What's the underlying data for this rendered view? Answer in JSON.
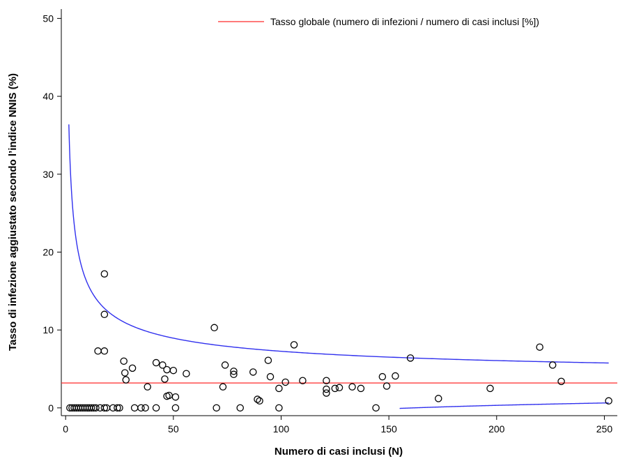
{
  "chart_data": {
    "type": "scatter",
    "xlabel": "Numero di casi inclusi (N)",
    "ylabel": "Tasso di infezione aggiustato secondo l’indice NNIS (%)",
    "xlim": [
      -2,
      256
    ],
    "ylim": [
      -1,
      51.2
    ],
    "xticks": [
      0,
      50,
      100,
      150,
      200,
      250
    ],
    "yticks": [
      0,
      10,
      20,
      30,
      40,
      50
    ],
    "grid": false,
    "legend_position": "top-right",
    "legend_label": "Tasso globale (numero di infezioni / numero di casi inclusi [%])",
    "overall_rate": 3.2,
    "colors": {
      "points": "#000000",
      "reference_line": "#ff2a2a",
      "control_limits": "#3030ee"
    },
    "control_limit_model": {
      "z": 2.31,
      "upper_x_range": [
        1.5,
        252
      ],
      "lower_x_range": [
        155,
        252
      ]
    },
    "points": [
      [
        2,
        0
      ],
      [
        3,
        0
      ],
      [
        4,
        0
      ],
      [
        5,
        0
      ],
      [
        6,
        0
      ],
      [
        7,
        0
      ],
      [
        8,
        0
      ],
      [
        9,
        0
      ],
      [
        10,
        0
      ],
      [
        11,
        0
      ],
      [
        12,
        0
      ],
      [
        13,
        0
      ],
      [
        14,
        0
      ],
      [
        16,
        0
      ],
      [
        18,
        0
      ],
      [
        19,
        0
      ],
      [
        22,
        0
      ],
      [
        24,
        0
      ],
      [
        25,
        0
      ],
      [
        32,
        0
      ],
      [
        35,
        0
      ],
      [
        37,
        0
      ],
      [
        42,
        0
      ],
      [
        51,
        0
      ],
      [
        70,
        0
      ],
      [
        81,
        0
      ],
      [
        99,
        0
      ],
      [
        144,
        0
      ],
      [
        15,
        7.3
      ],
      [
        18,
        7.3
      ],
      [
        18,
        12.0
      ],
      [
        18,
        17.2
      ],
      [
        27,
        6.0
      ],
      [
        27.5,
        4.5
      ],
      [
        28,
        3.6
      ],
      [
        31,
        5.1
      ],
      [
        38,
        2.7
      ],
      [
        42,
        5.8
      ],
      [
        45,
        5.5
      ],
      [
        46,
        3.7
      ],
      [
        47,
        4.9
      ],
      [
        47,
        1.5
      ],
      [
        48,
        1.6
      ],
      [
        50,
        4.8
      ],
      [
        51,
        1.4
      ],
      [
        56,
        4.4
      ],
      [
        69,
        10.3
      ],
      [
        73,
        2.7
      ],
      [
        74,
        5.5
      ],
      [
        78,
        4.7
      ],
      [
        78,
        4.3
      ],
      [
        87,
        4.6
      ],
      [
        89,
        1.1
      ],
      [
        90,
        0.9
      ],
      [
        94,
        6.1
      ],
      [
        95,
        4.0
      ],
      [
        99,
        2.5
      ],
      [
        102,
        3.3
      ],
      [
        106,
        8.1
      ],
      [
        110,
        3.5
      ],
      [
        121,
        2.4
      ],
      [
        121,
        3.5
      ],
      [
        121,
        1.9
      ],
      [
        125,
        2.5
      ],
      [
        127,
        2.6
      ],
      [
        133,
        2.7
      ],
      [
        137,
        2.5
      ],
      [
        147,
        4.0
      ],
      [
        149,
        2.8
      ],
      [
        153,
        4.1
      ],
      [
        160,
        6.4
      ],
      [
        173,
        1.2
      ],
      [
        197,
        2.5
      ],
      [
        220,
        7.8
      ],
      [
        226,
        5.5
      ],
      [
        230,
        3.4
      ],
      [
        252,
        0.9
      ]
    ]
  }
}
